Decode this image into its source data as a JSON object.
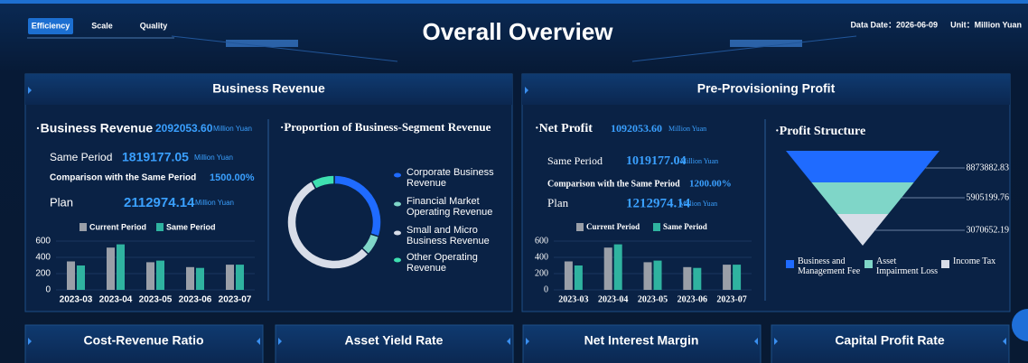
{
  "header": {
    "tabs": [
      "Efficiency",
      "Scale",
      "Quality"
    ],
    "title": "Overall Overview",
    "data_date": "Data Date：2026-06-09",
    "unit": "Unit：Million Yuan"
  },
  "panels": [
    {
      "title": "Business Revenue",
      "metric": {
        "label": "·Business Revenue",
        "value": "2092053.60",
        "unit": "Million Yuan"
      },
      "rows": [
        {
          "label": "Same Period",
          "value": "1819177.05",
          "unit": "Million Yuan"
        },
        {
          "label": "Comparison with the Same Period",
          "value": "1500.00%"
        },
        {
          "label": "Plan",
          "value": "2112974.14",
          "unit": "Million Yuan"
        }
      ]
    },
    {
      "title": "Pre-Provisioning Profit",
      "metric": {
        "label": "·Net Profit",
        "value": "1092053.60",
        "unit": "Million Yuan"
      },
      "rows": [
        {
          "label": "Same Period",
          "value": "1019177.04",
          "unit": "Million Yuan"
        },
        {
          "label": "Comparison with the Same Period",
          "value": "1200.00%"
        },
        {
          "label": "Plan",
          "value": "1212974.14",
          "unit": "Million Yuan"
        }
      ]
    }
  ],
  "chart_data": [
    {
      "type": "bar",
      "categories": [
        "2023-03",
        "2023-04",
        "2023-05",
        "2023-06",
        "2023-07"
      ],
      "series": [
        {
          "name": "Current Period",
          "color": "#9a9fa8",
          "values": [
            350,
            520,
            340,
            280,
            310
          ]
        },
        {
          "name": "Same Period",
          "color": "#2fb3a0",
          "values": [
            300,
            560,
            360,
            270,
            310
          ]
        }
      ],
      "ylim": [
        0,
        600
      ],
      "yticks": [
        0,
        200,
        400,
        600
      ],
      "grid": true
    },
    {
      "type": "pie",
      "title": "·Proportion of Business-Segment Revenue",
      "categories": [
        "Corporate Business Revenue",
        "Financial Market Operating Revenue",
        "Small and Micro Business Revenue",
        "Other Operating Revenue"
      ],
      "values": [
        30,
        7,
        55,
        8
      ],
      "colors": [
        "#1f6bff",
        "#7fd6c8",
        "#d8dde8",
        "#3ee0b0"
      ],
      "donut": true
    },
    {
      "type": "bar",
      "categories": [
        "2023-03",
        "2023-04",
        "2023-05",
        "2023-06",
        "2023-07"
      ],
      "series": [
        {
          "name": "Current Period",
          "color": "#9a9fa8",
          "values": [
            350,
            520,
            340,
            280,
            310
          ]
        },
        {
          "name": "Same Period",
          "color": "#2fb3a0",
          "values": [
            300,
            560,
            360,
            270,
            310
          ]
        }
      ],
      "ylim": [
        0,
        600
      ],
      "yticks": [
        0,
        200,
        400,
        600
      ],
      "grid": true
    },
    {
      "type": "funnel",
      "title": "·Profit Structure",
      "categories": [
        "Business and Management Fee",
        "Asset Impairment Loss",
        "Income Tax"
      ],
      "values": [
        8873882.83,
        5905199.76,
        3070652.19
      ],
      "colors": [
        "#1f6bff",
        "#7fd6c8",
        "#d8dde8"
      ]
    }
  ],
  "bottom_tabs": [
    "Cost-Revenue Ratio",
    "Asset Yield Rate",
    "Net Interest Margin",
    "Capital Profit Rate"
  ]
}
